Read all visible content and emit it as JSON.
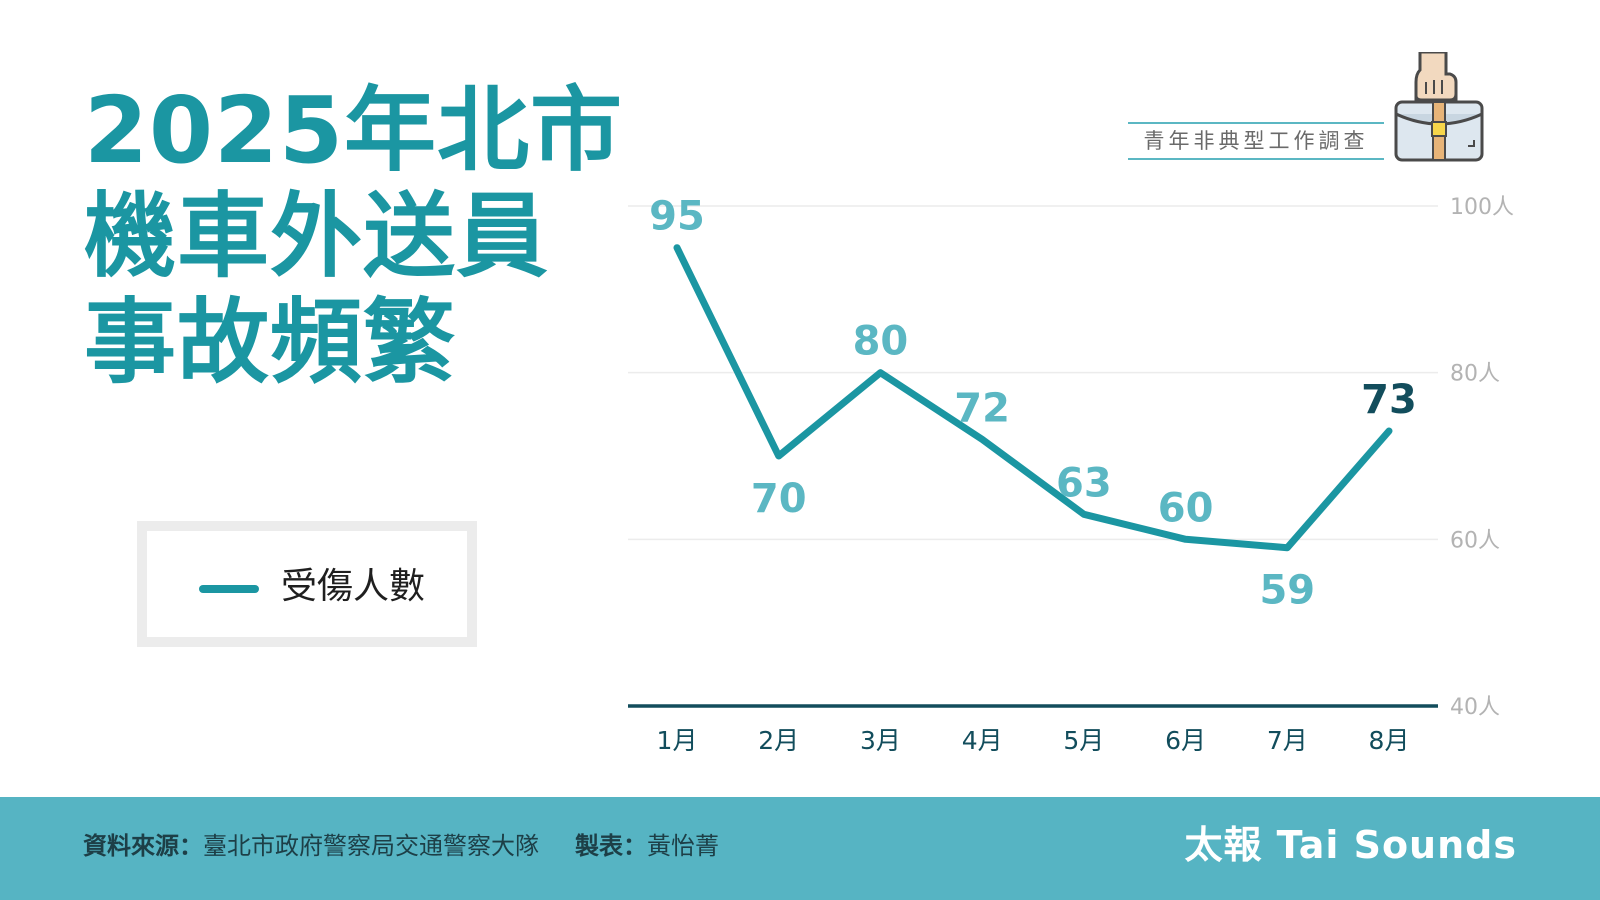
{
  "title": {
    "lines": [
      "2025年北市",
      "機車外送員",
      "事故頻繁"
    ]
  },
  "badge": {
    "label": "青年非典型工作調查",
    "icon": "briefcase-hand-icon"
  },
  "legend": {
    "label": "受傷人數"
  },
  "colors": {
    "title": "#1b96a2",
    "series_line": "#1b96a2",
    "data_label": "#5bb7c3",
    "highlight_label": "#124d5c",
    "axis": "#124d5c",
    "footer_bg": "#56b4c3"
  },
  "chart_data": {
    "type": "line",
    "categories": [
      "1月",
      "2月",
      "3月",
      "4月",
      "5月",
      "6月",
      "7月",
      "8月"
    ],
    "series": [
      {
        "name": "受傷人數",
        "values": [
          95,
          70,
          80,
          72,
          63,
          60,
          59,
          73
        ]
      }
    ],
    "data_labels": [
      "95",
      "70",
      "80",
      "72",
      "63",
      "60",
      "59",
      "73"
    ],
    "highlight_index": 7,
    "ylim": [
      40,
      100
    ],
    "y_ticks": [
      {
        "value": 40,
        "label": "40人"
      },
      {
        "value": 60,
        "label": "60人"
      },
      {
        "value": 80,
        "label": "80人"
      },
      {
        "value": 100,
        "label": "100人"
      }
    ],
    "y_axis_side": "right",
    "grid": true,
    "legend_position": "left"
  },
  "footer": {
    "source_label": "資料來源：",
    "source_text": "臺北市政府警察局交通警察大隊",
    "maker_label": "製表：",
    "maker_text": "黃怡菁",
    "brand": "太報 Tai Sounds"
  }
}
